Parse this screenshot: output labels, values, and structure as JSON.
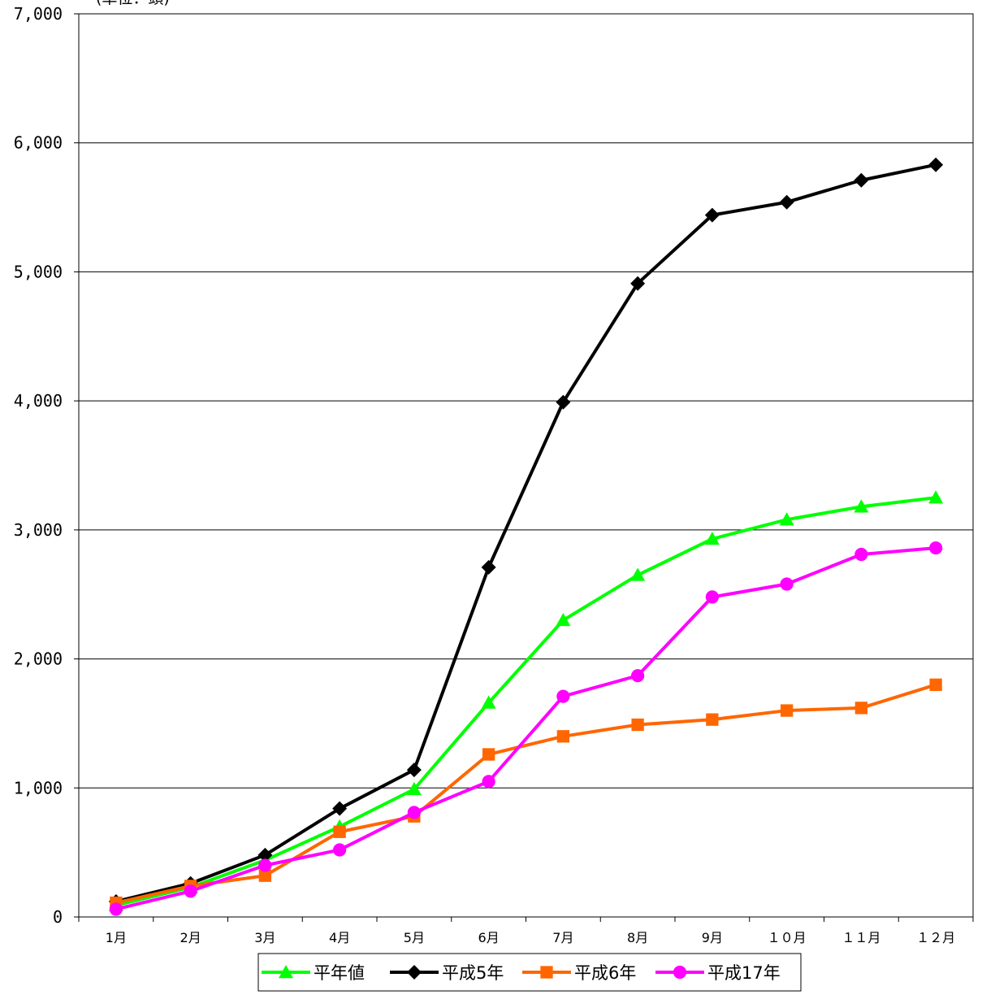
{
  "chart_data": {
    "type": "line",
    "title": "",
    "unit_label": "(単位：頭)",
    "xlabel": "",
    "ylabel": "",
    "categories": [
      "1月",
      "2月",
      "3月",
      "4月",
      "5月",
      "6月",
      "7月",
      "8月",
      "9月",
      "１０月",
      "１１月",
      "１２月"
    ],
    "ylim": [
      0,
      7000
    ],
    "yticks": [
      0,
      1000,
      2000,
      3000,
      4000,
      5000,
      6000,
      7000
    ],
    "ytick_labels": [
      "0",
      "1,000",
      "2,000",
      "3,000",
      "4,000",
      "5,000",
      "6,000",
      "7,000"
    ],
    "grid": true,
    "legend_position": "bottom",
    "series": [
      {
        "name": "平年値",
        "color": "#00ff00",
        "marker": "triangle",
        "values": [
          90,
          230,
          440,
          700,
          990,
          1660,
          2300,
          2650,
          2930,
          3080,
          3180,
          3250
        ]
      },
      {
        "name": "平成5年",
        "color": "#000000",
        "marker": "diamond",
        "values": [
          120,
          260,
          480,
          840,
          1140,
          2710,
          3990,
          4910,
          5440,
          5540,
          5710,
          5830
        ]
      },
      {
        "name": "平成6年",
        "color": "#ff6600",
        "marker": "square",
        "values": [
          110,
          240,
          320,
          660,
          780,
          1260,
          1400,
          1490,
          1530,
          1600,
          1620,
          1800
        ]
      },
      {
        "name": "平成17年",
        "color": "#ff00ff",
        "marker": "circle",
        "values": [
          60,
          200,
          400,
          520,
          810,
          1050,
          1710,
          1870,
          2480,
          2580,
          2810,
          2860
        ]
      }
    ]
  }
}
